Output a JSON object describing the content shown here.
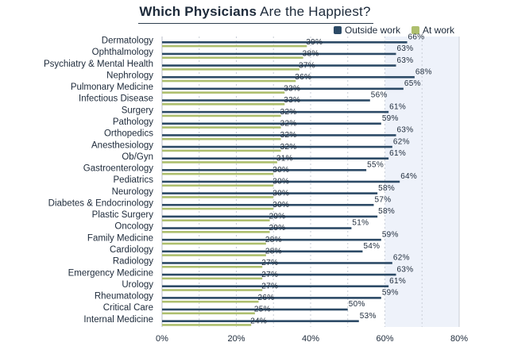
{
  "chart_data": {
    "type": "bar",
    "orientation": "horizontal",
    "title_bold": "Which Physicians",
    "title_rest": " Are the Happiest?",
    "categories": [
      "Dermatology",
      "Ophthalmology",
      "Psychiatry & Mental Health",
      "Nephrology",
      "Pulmonary Medicine",
      "Infectious Disease",
      "Surgery",
      "Pathology",
      "Orthopedics",
      "Anesthesiology",
      "Ob/Gyn",
      "Gastroenterology",
      "Pediatrics",
      "Neurology",
      "Diabetes & Endocrinology",
      "Plastic Surgery",
      "Oncology",
      "Family Medicine",
      "Cardiology",
      "Radiology",
      "Emergency Medicine",
      "Urology",
      "Rheumatology",
      "Critical Care",
      "Internal Medicine"
    ],
    "series": [
      {
        "name": "Outside work",
        "color": "#2c4a66",
        "values": [
          66,
          63,
          63,
          68,
          65,
          56,
          61,
          59,
          63,
          62,
          61,
          55,
          64,
          58,
          57,
          58,
          51,
          59,
          54,
          62,
          63,
          61,
          59,
          50,
          53
        ]
      },
      {
        "name": "At work",
        "color": "#aebf6e",
        "values": [
          39,
          38,
          37,
          36,
          33,
          33,
          32,
          32,
          32,
          32,
          31,
          30,
          30,
          30,
          30,
          29,
          29,
          28,
          28,
          27,
          27,
          27,
          26,
          25,
          24
        ]
      }
    ],
    "value_suffix": "%",
    "xlim": [
      0,
      80
    ],
    "x_ticks": [
      "0%",
      "20%",
      "40%",
      "60%",
      "80%"
    ],
    "grid": "vertical dashed",
    "legend_position": "top-right"
  }
}
